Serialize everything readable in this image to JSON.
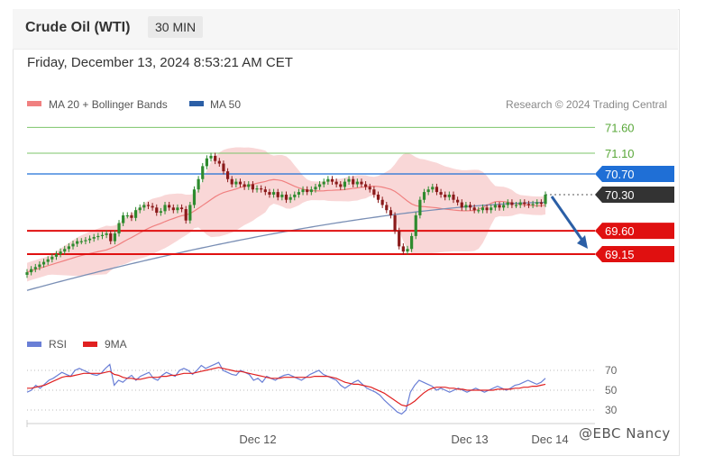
{
  "header": {
    "title": "Crude Oil (WTI)",
    "timeframe": "30 MIN"
  },
  "timestamp": "Friday, December 13, 2024 8:53:21 AM CET",
  "credit": "Research © 2024 Trading Central",
  "watermark": "@EBC Nancy",
  "colors": {
    "bull_candle": "#2e8b2e",
    "bear_candle": "#8b1a1a",
    "bollinger_fill": "#f7c9c9",
    "ma20": "#f08080",
    "ma50": "#7a8fb5",
    "blue_level": "#1f6fd6",
    "red_level": "#e01010",
    "green_level": "#7cc46a",
    "current_price": "#333333",
    "arrow": "#2b5fa6",
    "rsi": "#6a7fd6",
    "rsi_ma": "#e02020"
  },
  "chart_data": [
    {
      "type": "candlestick",
      "title": "Crude Oil (WTI)",
      "timeframe": "30 MIN",
      "x_tick_labels": [
        "Dec 12",
        "Dec 13",
        "Dec 14"
      ],
      "legend": [
        {
          "name": "MA 20 + Bollinger Bands",
          "color": "#f08080"
        },
        {
          "name": "MA 50",
          "color": "#2b5fa6"
        }
      ],
      "ylim": [
        68.4,
        71.8
      ],
      "levels": [
        {
          "label": "71.60",
          "value": 71.6,
          "kind": "green"
        },
        {
          "label": "71.10",
          "value": 71.1,
          "kind": "green"
        },
        {
          "label": "70.70",
          "value": 70.7,
          "kind": "blue"
        },
        {
          "label": "70.30",
          "value": 70.3,
          "kind": "current"
        },
        {
          "label": "69.60",
          "value": 69.6,
          "kind": "red"
        },
        {
          "label": "69.15",
          "value": 69.15,
          "kind": "red"
        }
      ],
      "closes": [
        68.8,
        68.86,
        68.9,
        68.95,
        69.0,
        69.05,
        69.1,
        69.15,
        69.2,
        69.25,
        69.3,
        69.35,
        69.4,
        69.4,
        69.42,
        69.45,
        69.48,
        69.5,
        69.52,
        69.55,
        69.4,
        69.55,
        69.75,
        69.9,
        69.9,
        69.85,
        70.0,
        70.05,
        70.1,
        70.08,
        70.05,
        69.95,
        69.98,
        70.1,
        70.05,
        70.0,
        70.05,
        70.02,
        69.8,
        70.1,
        70.4,
        70.6,
        70.85,
        71.0,
        71.05,
        70.95,
        70.9,
        70.75,
        70.6,
        70.5,
        70.55,
        70.5,
        70.45,
        70.5,
        70.4,
        70.42,
        70.4,
        70.35,
        70.3,
        70.35,
        70.25,
        70.3,
        70.2,
        70.25,
        70.3,
        70.35,
        70.4,
        70.35,
        70.4,
        70.45,
        70.5,
        70.55,
        70.6,
        70.55,
        70.5,
        70.45,
        70.55,
        70.6,
        70.5,
        70.55,
        70.5,
        70.45,
        70.4,
        70.3,
        70.2,
        70.1,
        70.0,
        69.9,
        69.6,
        69.3,
        69.2,
        69.25,
        69.5,
        69.9,
        70.2,
        70.35,
        70.4,
        70.45,
        70.35,
        70.3,
        70.25,
        70.3,
        70.2,
        70.15,
        70.05,
        70.1,
        70.05,
        70.0,
        70.0,
        70.05,
        70.0,
        70.05,
        70.1,
        70.05,
        70.1,
        70.15,
        70.1,
        70.1,
        70.15,
        70.12,
        70.1,
        70.12,
        70.15,
        70.12,
        70.3
      ],
      "ma50_start": 68.45,
      "ma50_end": 70.15,
      "forecast_target": 69.15
    },
    {
      "type": "line",
      "title": "RSI",
      "legend": [
        {
          "name": "RSI",
          "color": "#6a7fd6"
        },
        {
          "name": "9MA",
          "color": "#e02020"
        }
      ],
      "ylim": [
        20,
        80
      ],
      "y_ticks": [
        "70",
        "50",
        "30"
      ],
      "rsi": [
        48,
        50,
        55,
        52,
        56,
        60,
        62,
        65,
        68,
        66,
        64,
        70,
        72,
        70,
        68,
        66,
        65,
        67,
        72,
        76,
        55,
        60,
        58,
        62,
        65,
        60,
        64,
        66,
        68,
        62,
        60,
        65,
        68,
        66,
        64,
        70,
        72,
        70,
        66,
        70,
        75,
        72,
        74,
        76,
        78,
        70,
        68,
        66,
        65,
        70,
        68,
        66,
        60,
        62,
        58,
        64,
        62,
        60,
        63,
        65,
        66,
        64,
        62,
        60,
        63,
        66,
        68,
        70,
        66,
        64,
        62,
        60,
        55,
        52,
        55,
        58,
        60,
        56,
        52,
        50,
        48,
        45,
        40,
        36,
        32,
        28,
        26,
        30,
        48,
        55,
        60,
        58,
        56,
        54,
        50,
        52,
        50,
        48,
        50,
        52,
        50,
        48,
        50,
        52,
        50,
        48,
        50,
        52,
        54,
        52,
        50,
        52,
        55,
        56,
        58,
        60,
        58,
        56,
        58,
        62
      ],
      "rsi_ma": [
        52,
        52,
        53,
        54,
        55,
        57,
        59,
        61,
        63,
        64,
        64,
        65,
        66,
        67,
        67,
        67,
        67,
        67,
        68,
        69,
        66,
        65,
        63,
        62,
        62,
        61,
        61,
        62,
        63,
        63,
        63,
        64,
        64,
        65,
        65,
        66,
        67,
        67,
        67,
        68,
        69,
        70,
        71,
        72,
        73,
        72,
        71,
        70,
        69,
        69,
        68,
        67,
        66,
        65,
        64,
        63,
        62,
        62,
        62,
        63,
        63,
        63,
        63,
        63,
        63,
        63,
        64,
        64,
        64,
        64,
        63,
        62,
        60,
        58,
        57,
        56,
        56,
        55,
        54,
        53,
        51,
        49,
        47,
        44,
        41,
        38,
        35,
        34,
        36,
        39,
        43,
        47,
        50,
        52,
        53,
        53,
        53,
        52,
        52,
        51,
        51,
        50,
        50,
        50,
        50,
        50,
        50,
        50,
        51,
        51,
        51,
        51,
        52,
        52,
        53,
        53,
        54,
        54,
        55,
        56
      ]
    }
  ]
}
